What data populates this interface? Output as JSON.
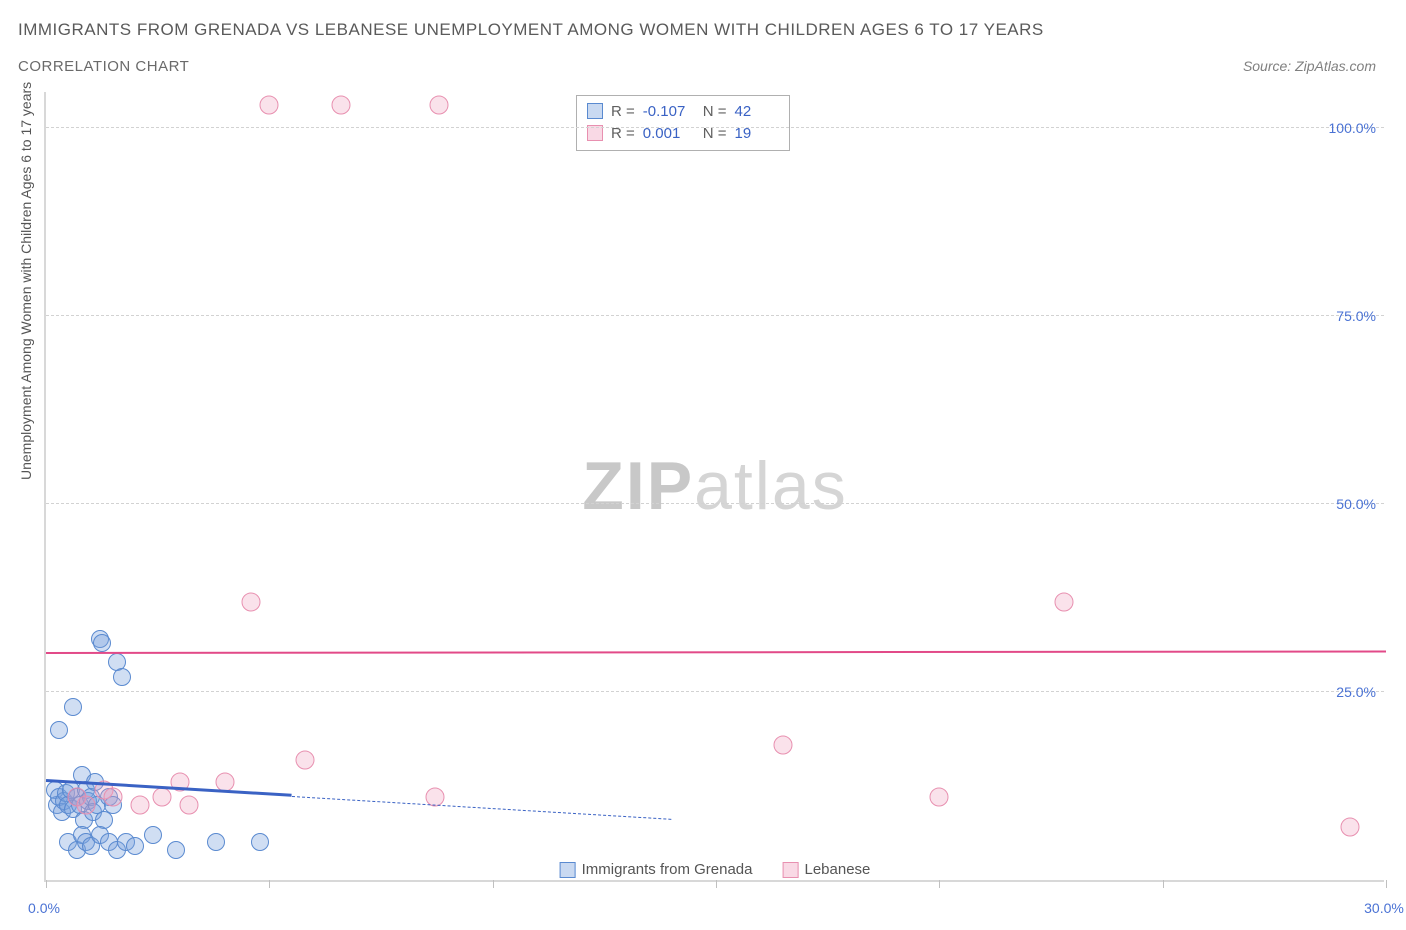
{
  "title": "IMMIGRANTS FROM GRENADA VS LEBANESE UNEMPLOYMENT AMONG WOMEN WITH CHILDREN AGES 6 TO 17 YEARS",
  "subtitle": "CORRELATION CHART",
  "source_prefix": "Source: ",
  "source_name": "ZipAtlas.com",
  "watermark_a": "ZIP",
  "watermark_b": "atlas",
  "y_axis_label": "Unemployment Among Women with Children Ages 6 to 17 years",
  "chart": {
    "type": "scatter",
    "xlim": [
      0,
      30
    ],
    "ylim": [
      0,
      105
    ],
    "x_ticks": [
      0,
      5,
      10,
      15,
      20,
      25,
      30
    ],
    "x_tick_labels": [
      "0.0%",
      "",
      "",
      "",
      "",
      "",
      "30.0%"
    ],
    "y_ticks": [
      25,
      50,
      75,
      100
    ],
    "y_tick_labels": [
      "25.0%",
      "50.0%",
      "75.0%",
      "100.0%"
    ],
    "grid_y": [
      25,
      50,
      75,
      100
    ],
    "background_color": "#ffffff",
    "grid_color": "#d2d2d2",
    "series": [
      {
        "name": "Immigrants from Grenada",
        "color_fill": "rgba(120,160,220,0.35)",
        "color_stroke": "#5a8ad0",
        "marker": "circle",
        "marker_size": 18,
        "R": "-0.107",
        "N": "42",
        "trend": {
          "x1": 0,
          "y1": 13,
          "x2": 14,
          "y2": 8,
          "solid_until_x": 5.5,
          "color": "#3a62c4",
          "width": 3
        },
        "points": [
          [
            0.2,
            12
          ],
          [
            0.25,
            10
          ],
          [
            0.3,
            11
          ],
          [
            0.35,
            9
          ],
          [
            0.4,
            10.5
          ],
          [
            0.45,
            11.5
          ],
          [
            0.5,
            10
          ],
          [
            0.55,
            12
          ],
          [
            0.6,
            9.5
          ],
          [
            0.7,
            11
          ],
          [
            0.75,
            10
          ],
          [
            0.8,
            14
          ],
          [
            0.85,
            8
          ],
          [
            0.9,
            12
          ],
          [
            0.95,
            10.5
          ],
          [
            1.0,
            11
          ],
          [
            1.05,
            9
          ],
          [
            1.1,
            13
          ],
          [
            1.15,
            10
          ],
          [
            1.2,
            32
          ],
          [
            1.25,
            31.5
          ],
          [
            1.3,
            8
          ],
          [
            1.4,
            11
          ],
          [
            1.5,
            10
          ],
          [
            1.6,
            29
          ],
          [
            1.7,
            27
          ],
          [
            0.5,
            5
          ],
          [
            0.7,
            4
          ],
          [
            0.8,
            6
          ],
          [
            0.9,
            5
          ],
          [
            1.0,
            4.5
          ],
          [
            1.2,
            6
          ],
          [
            1.4,
            5
          ],
          [
            1.6,
            4
          ],
          [
            1.8,
            5
          ],
          [
            2.0,
            4.5
          ],
          [
            2.4,
            6
          ],
          [
            2.9,
            4
          ],
          [
            3.8,
            5
          ],
          [
            4.8,
            5
          ],
          [
            0.3,
            20
          ],
          [
            0.6,
            23
          ]
        ]
      },
      {
        "name": "Lebanese",
        "color_fill": "rgba(240,160,190,0.30)",
        "color_stroke": "#e890b0",
        "marker": "circle",
        "marker_size": 19,
        "R": "0.001",
        "N": "19",
        "trend": {
          "x1": 0,
          "y1": 30,
          "x2": 30,
          "y2": 30.2,
          "color": "#e24a88",
          "width": 2.5
        },
        "points": [
          [
            0.7,
            11
          ],
          [
            0.9,
            10
          ],
          [
            1.3,
            12
          ],
          [
            1.5,
            11
          ],
          [
            2.1,
            10
          ],
          [
            2.6,
            11
          ],
          [
            3.0,
            13
          ],
          [
            3.2,
            10
          ],
          [
            4.0,
            13
          ],
          [
            5.8,
            16
          ],
          [
            8.7,
            11
          ],
          [
            16.5,
            18
          ],
          [
            20.0,
            11
          ],
          [
            22.8,
            37
          ],
          [
            29.2,
            7
          ],
          [
            4.6,
            37
          ],
          [
            5.0,
            103
          ],
          [
            6.6,
            103
          ],
          [
            8.8,
            103
          ]
        ]
      }
    ]
  },
  "legend": {
    "items": [
      {
        "label": "Immigrants from Grenada",
        "swatch": "blue"
      },
      {
        "label": "Lebanese",
        "swatch": "pink"
      }
    ]
  },
  "stats_box": {
    "rows": [
      {
        "swatch": "blue",
        "r_label": "R =",
        "r_val": "-0.107",
        "n_label": "N =",
        "n_val": "42"
      },
      {
        "swatch": "pink",
        "r_label": "R =",
        "r_val": "0.001",
        "n_label": "N =",
        "n_val": "19"
      }
    ]
  }
}
